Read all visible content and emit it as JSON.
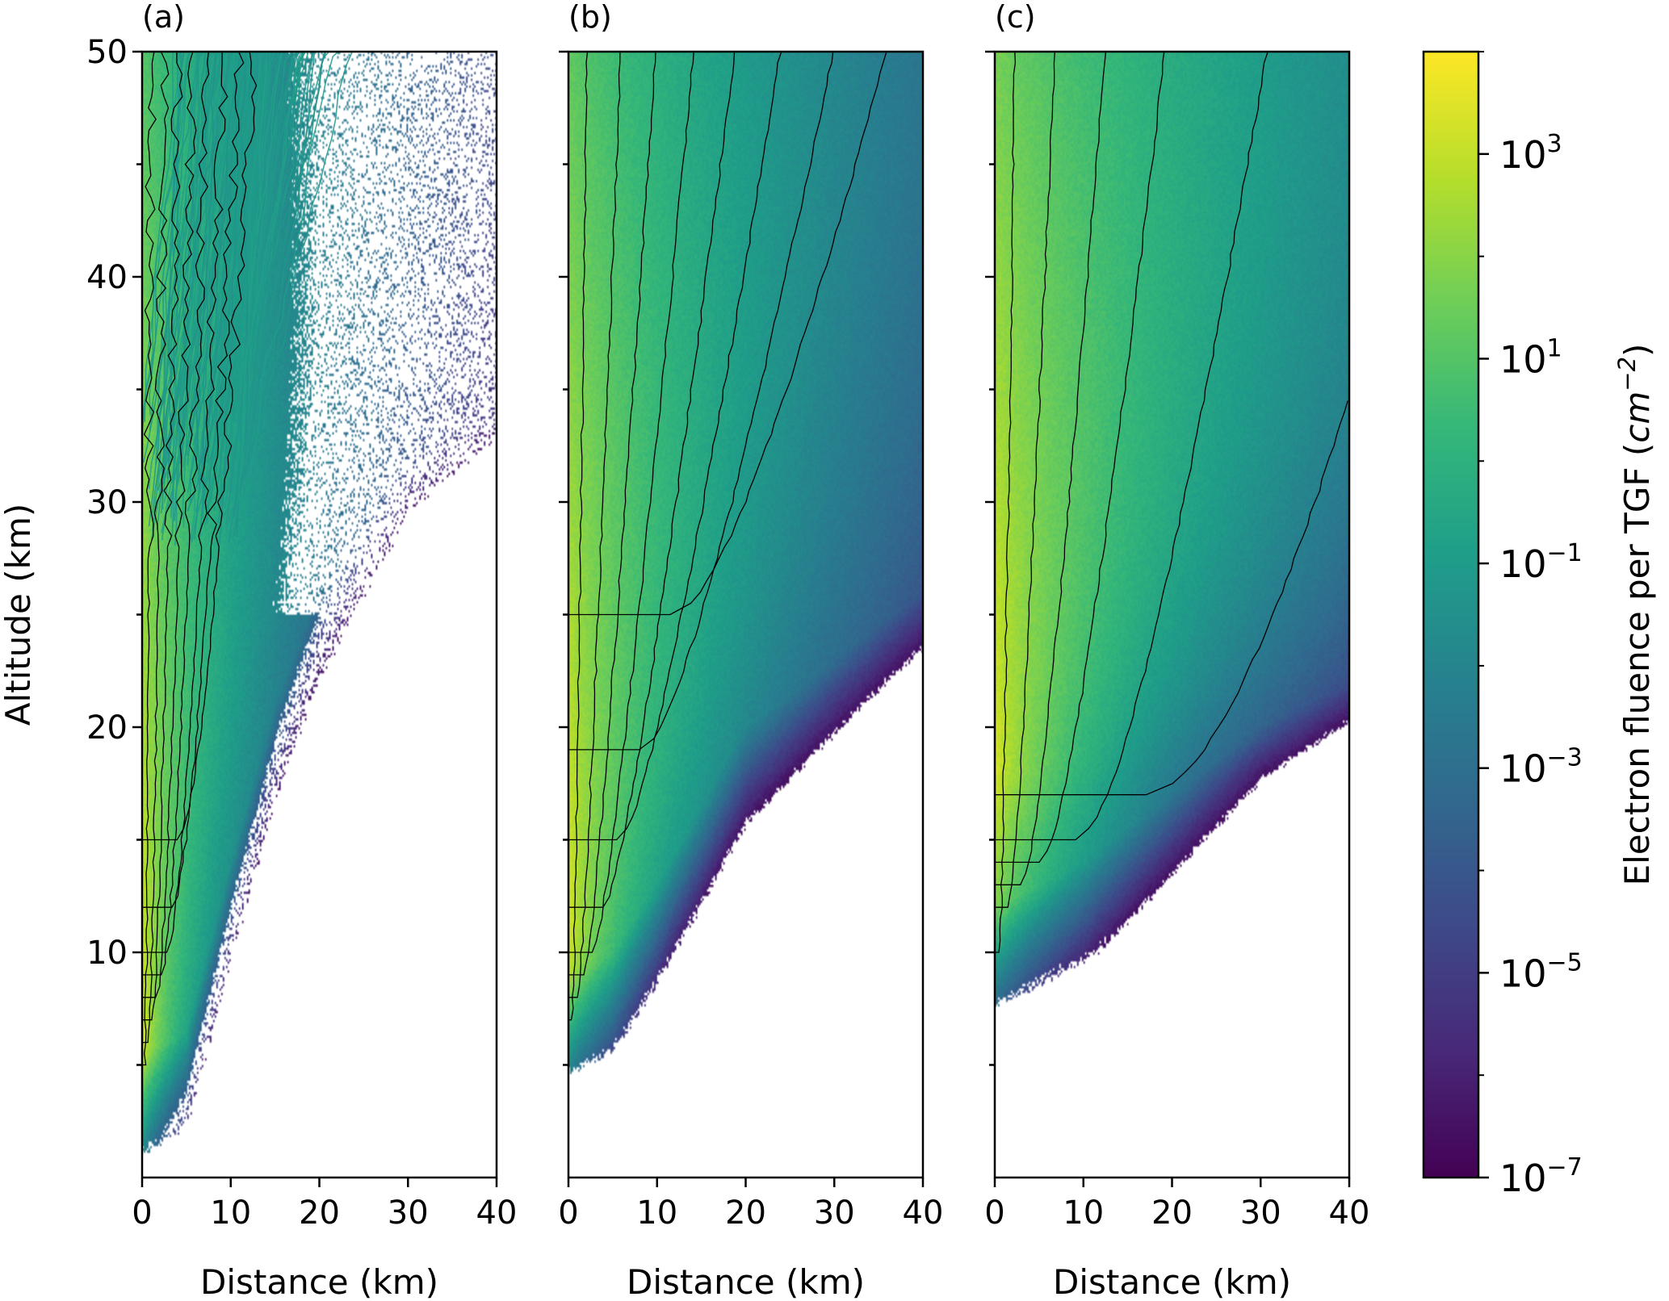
{
  "chart_data": [
    {
      "type": "heatmap",
      "panel_label": "(a)",
      "xlabel": "Distance (km)",
      "ylabel": "Altitude (km)",
      "xlim": [
        0,
        40
      ],
      "ylim": [
        0,
        50
      ],
      "xticks": [
        "0",
        "10",
        "20",
        "30",
        "40"
      ],
      "yticks": [
        "10",
        "20",
        "30",
        "40",
        "50"
      ],
      "peak": {
        "distance_km": 0,
        "altitude_km": 6
      },
      "spread": {
        "base_km": 3.5,
        "growth": 0.35
      },
      "lower_edge": [
        [
          0,
          1.5
        ],
        [
          5,
          2.5
        ],
        [
          10,
          10
        ],
        [
          15,
          17
        ],
        [
          20,
          22
        ],
        [
          30,
          28
        ],
        [
          40,
          30
        ]
      ],
      "contour_bases_km": [
        5,
        6,
        7,
        8,
        9,
        10,
        12,
        15
      ],
      "contour_widths_km": [
        0.3,
        0.7,
        1.1,
        1.6,
        2.1,
        2.7,
        3.3,
        4.0
      ],
      "stochastic_tracks": true
    },
    {
      "type": "heatmap",
      "panel_label": "(b)",
      "xlabel": "Distance (km)",
      "ylabel": "",
      "xlim": [
        0,
        40
      ],
      "ylim": [
        0,
        50
      ],
      "xticks": [
        "0",
        "10",
        "20",
        "30",
        "40"
      ],
      "peak": {
        "distance_km": 0,
        "altitude_km": 11
      },
      "spread": {
        "base_km": 6,
        "growth": 0.6
      },
      "lower_edge": [
        [
          0,
          5
        ],
        [
          5,
          6
        ],
        [
          10,
          9
        ],
        [
          20,
          16
        ],
        [
          30,
          19
        ],
        [
          40,
          22
        ]
      ],
      "contour_bases_km": [
        7,
        8,
        9,
        10,
        12,
        15,
        19,
        25
      ],
      "contour_widths_km": [
        0.4,
        1.0,
        1.7,
        2.6,
        3.8,
        5.5,
        8.0,
        11.5
      ],
      "stochastic_tracks": false
    },
    {
      "type": "heatmap",
      "panel_label": "(c)",
      "xlabel": "Distance (km)",
      "ylabel": "",
      "xlim": [
        0,
        40
      ],
      "ylim": [
        0,
        50
      ],
      "xticks": [
        "0",
        "10",
        "20",
        "30",
        "40"
      ],
      "peak": {
        "distance_km": 0,
        "altitude_km": 18
      },
      "spread": {
        "base_km": 9,
        "growth": 0.9
      },
      "lower_edge": [
        [
          0,
          8
        ],
        [
          5,
          9
        ],
        [
          10,
          10
        ],
        [
          20,
          13
        ],
        [
          30,
          16
        ],
        [
          40,
          18
        ]
      ],
      "contour_bases_km": [
        10,
        12,
        13,
        14,
        15,
        17
      ],
      "contour_widths_km": [
        0.5,
        1.5,
        3.0,
        5.0,
        9.0,
        17.0
      ],
      "stochastic_tracks": false
    }
  ],
  "colorbar": {
    "label": "Electron fluence per TGF (cm⁻²)",
    "label_main": "Electron fluence per TGF (",
    "label_unit": "cm",
    "label_exp": "−2",
    "label_close": ")",
    "scale": "log",
    "range_exponents": [
      -7,
      4
    ],
    "colormap": "viridis",
    "ticks": [
      {
        "base": "10",
        "exp": "3"
      },
      {
        "base": "10",
        "exp": "1"
      },
      {
        "base": "10",
        "exp": "−1"
      },
      {
        "base": "10",
        "exp": "−3"
      },
      {
        "base": "10",
        "exp": "−5"
      },
      {
        "base": "10",
        "exp": "−7"
      }
    ],
    "tick_exponents": [
      3,
      1,
      -1,
      -3,
      -5,
      -7
    ]
  }
}
